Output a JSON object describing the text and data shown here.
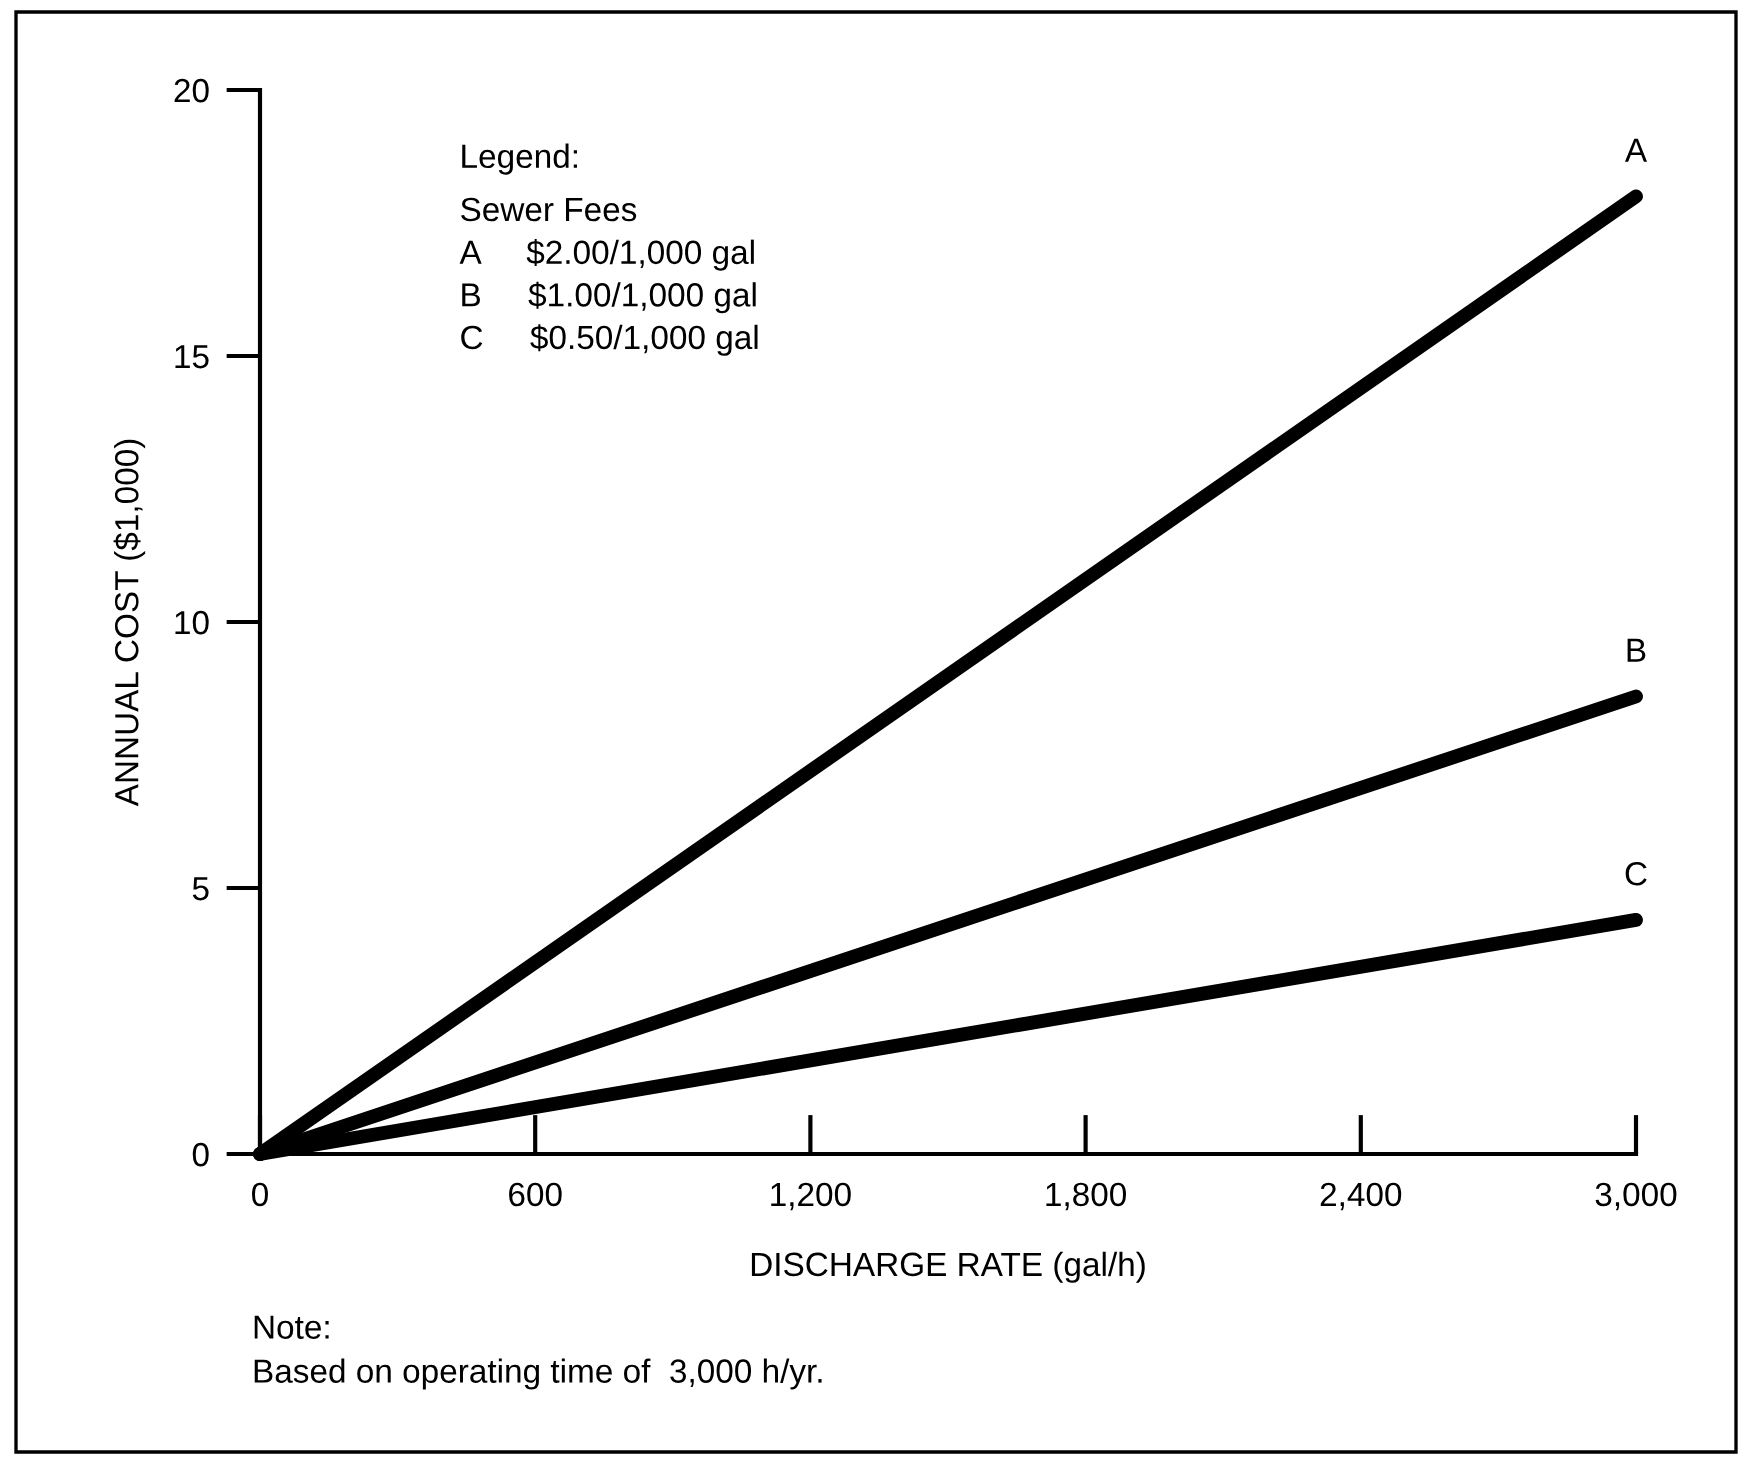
{
  "chart_data": {
    "type": "line",
    "xlabel": "DISCHARGE RATE (gal/h)",
    "ylabel": "ANNUAL COST ($1,000)",
    "x": [
      0,
      3000
    ],
    "series": [
      {
        "name": "A",
        "color": "#000000",
        "values": [
          0,
          18
        ]
      },
      {
        "name": "B",
        "color": "#000000",
        "values": [
          0,
          8.6
        ]
      },
      {
        "name": "C",
        "color": "#000000",
        "values": [
          0,
          4.4
        ]
      }
    ],
    "xlim": [
      0,
      3000
    ],
    "xticks": [
      0,
      {
        "value": 600,
        "label": "600"
      },
      {
        "value": 1200,
        "label": "1,200"
      },
      {
        "value": 1800,
        "label": "1,800"
      },
      {
        "value": 2400,
        "label": "2,400"
      },
      {
        "value": 3000,
        "label": "3,000"
      }
    ],
    "ylim": [
      0,
      20
    ],
    "yticks": [
      0,
      5,
      10,
      15,
      20
    ],
    "grid": false,
    "legend": false,
    "marker": "none",
    "line_style": "solid",
    "annotations": [
      "Legend:",
      "Sewer Fees",
      "A     $2.00/1,000 gal",
      "B     $1.00/1,000 gal",
      "C     $0.50/1,000 gal",
      "Note:",
      "Based on operating time of  3,000 h/yr."
    ]
  }
}
